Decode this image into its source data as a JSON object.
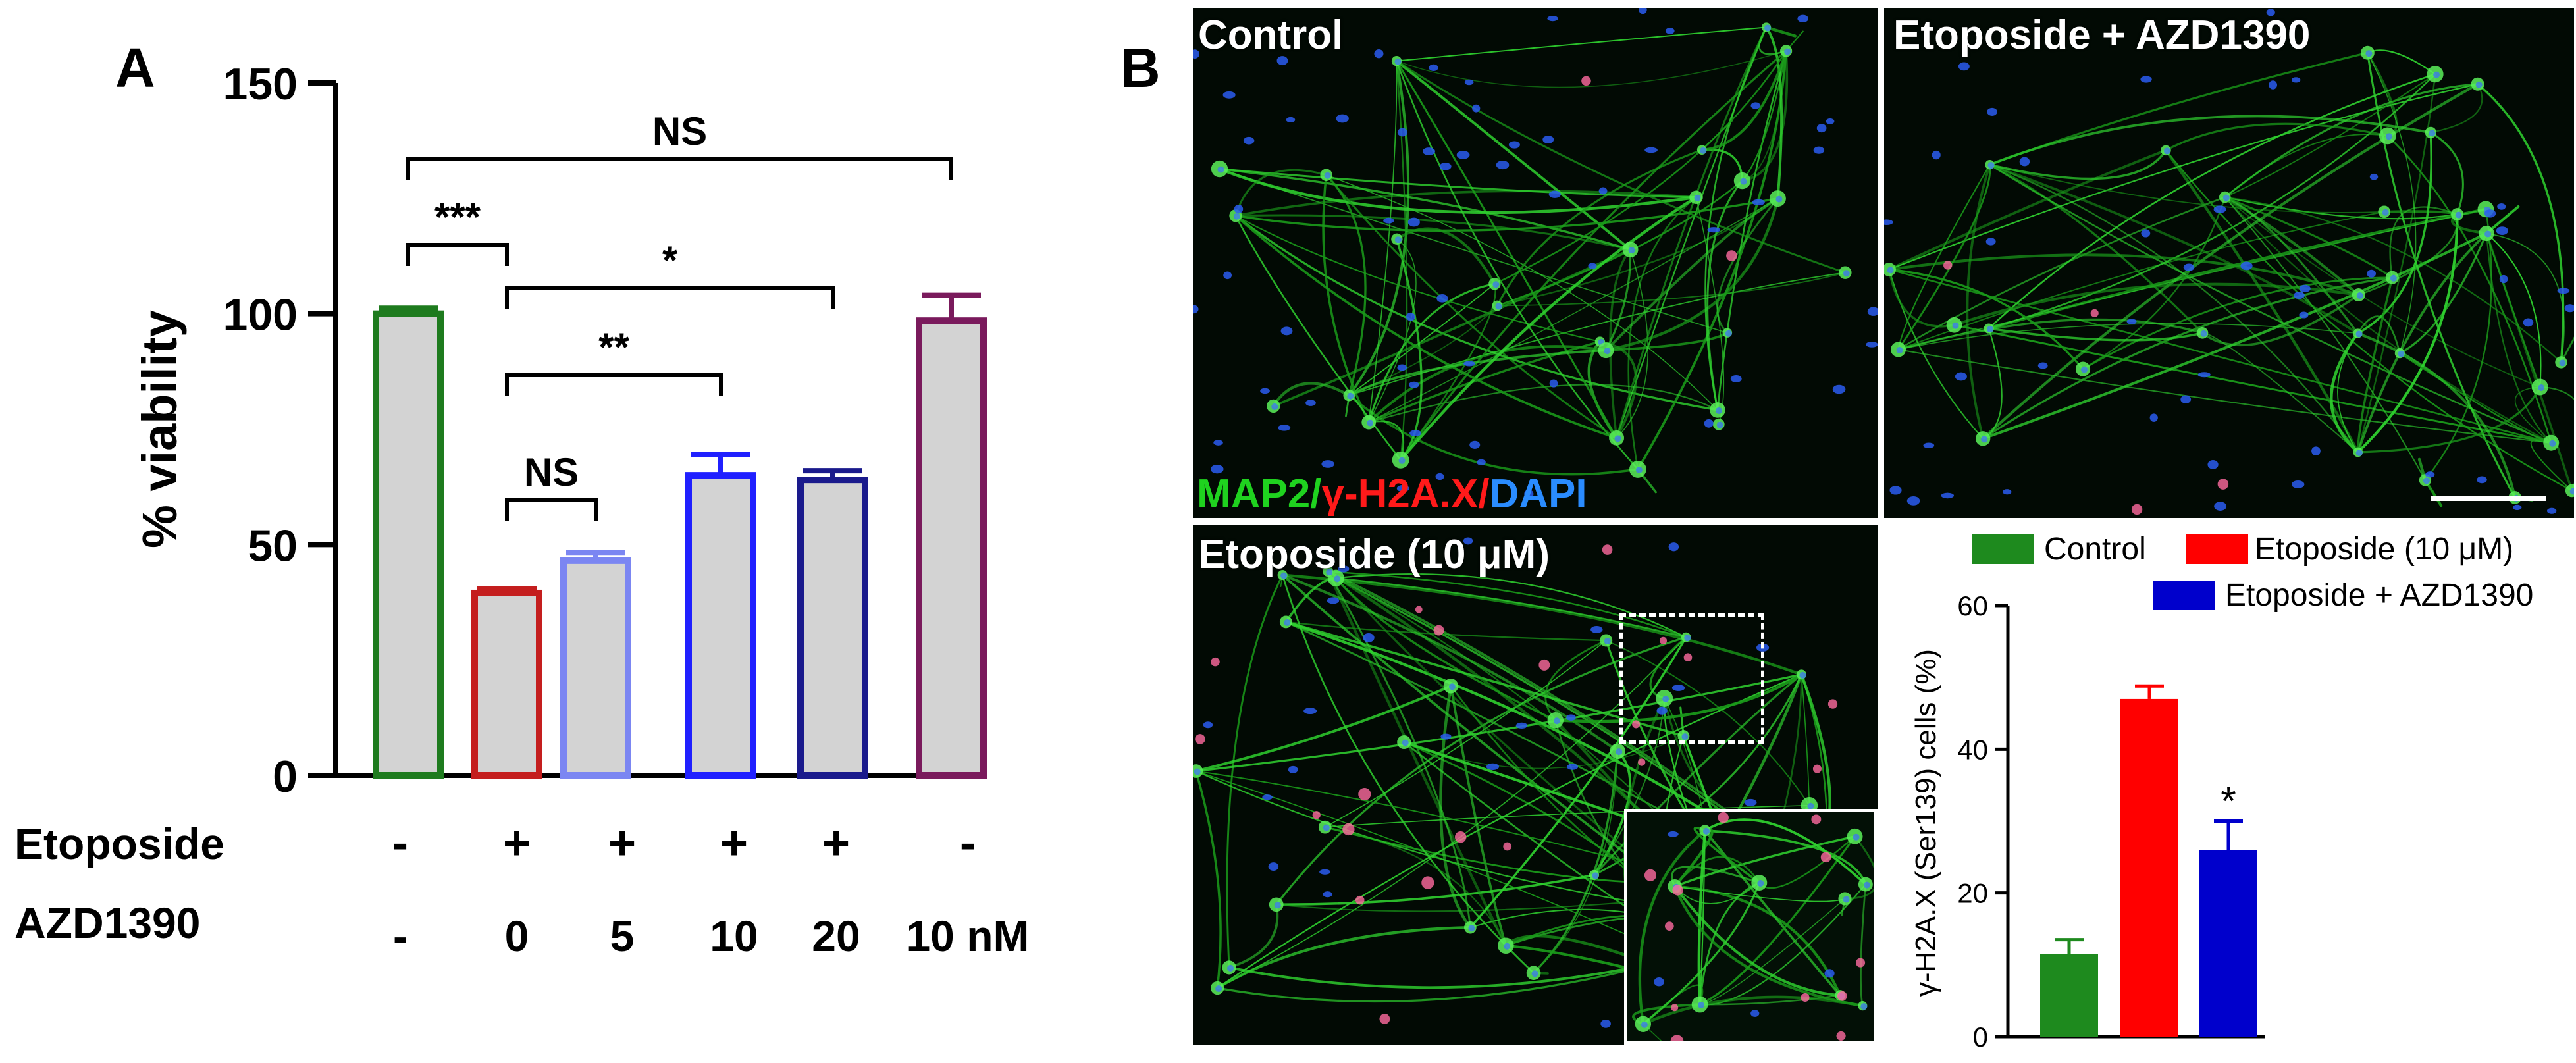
{
  "panel_a_letter": "A",
  "panel_b_letter": "B",
  "chart_data": [
    {
      "type": "bar",
      "panel": "A",
      "ylabel": "% viability",
      "ylim": [
        0,
        150
      ],
      "yticks": [
        0,
        50,
        100,
        150
      ],
      "categories": [
        "Etoposide - / AZD1390 -",
        "Etoposide + / AZD1390 0",
        "Etoposide + / AZD1390 5",
        "Etoposide + / AZD1390 10",
        "Etoposide + / AZD1390 20",
        "Etoposide - / AZD1390 10 nM"
      ],
      "values": [
        100,
        39.5,
        46.5,
        65,
        64,
        98.5
      ],
      "errors": [
        1.2,
        1.0,
        1.8,
        4.5,
        2.0,
        5.5
      ],
      "bar_fill": "#d3d3d3",
      "edge_colors": [
        "#1e7b1e",
        "#c41e1e",
        "#7b86f2",
        "#2020ff",
        "#1a1a8c",
        "#7a1a5c"
      ],
      "row_labels": [
        "Etoposide",
        "AZD1390"
      ],
      "etoposide_row": [
        "-",
        "+",
        "+",
        "+",
        "+",
        "-"
      ],
      "azd1390_row": [
        "-",
        "0",
        "5",
        "10",
        "20",
        "10 nM"
      ],
      "comparisons": [
        {
          "from": 0,
          "to": 5,
          "label": "NS"
        },
        {
          "from": 0,
          "to": 1,
          "label": "***"
        },
        {
          "from": 1,
          "to": 4,
          "label": "*"
        },
        {
          "from": 1,
          "to": 3,
          "label": "**"
        },
        {
          "from": 1,
          "to": 2,
          "label": "NS"
        }
      ],
      "grid": false
    },
    {
      "type": "bar",
      "panel": "B",
      "ylabel": "γ-H2A.X (Ser139) cells (%)",
      "ylim": [
        0,
        60
      ],
      "yticks": [
        0,
        20,
        40,
        60
      ],
      "categories": [
        "Control",
        "Etoposide (10 μM)",
        "Etoposide + AZD1390"
      ],
      "values": [
        11.5,
        47,
        26
      ],
      "errors": [
        2.0,
        1.8,
        4.0
      ],
      "colors": [
        "#1e8a1e",
        "#ff0000",
        "#0000cc"
      ],
      "annotations": [
        {
          "index": 2,
          "label": "*"
        }
      ],
      "legend": [
        "Control",
        "Etoposide (10 μM)",
        "Etoposide + AZD1390"
      ],
      "legend_position": "top",
      "grid": false
    }
  ],
  "micrographs": {
    "top_left_label": "Control",
    "top_right_label": "Etoposide + AZD1390",
    "bottom_left_label": "Etoposide (10 μM)",
    "stain": {
      "part1": "MAP2/",
      "part2": "γ-H2A.X/",
      "part3": "DAPI",
      "color1": "#1fd21f",
      "color2": "#ff1a1a",
      "color3": "#2a8cff"
    }
  }
}
